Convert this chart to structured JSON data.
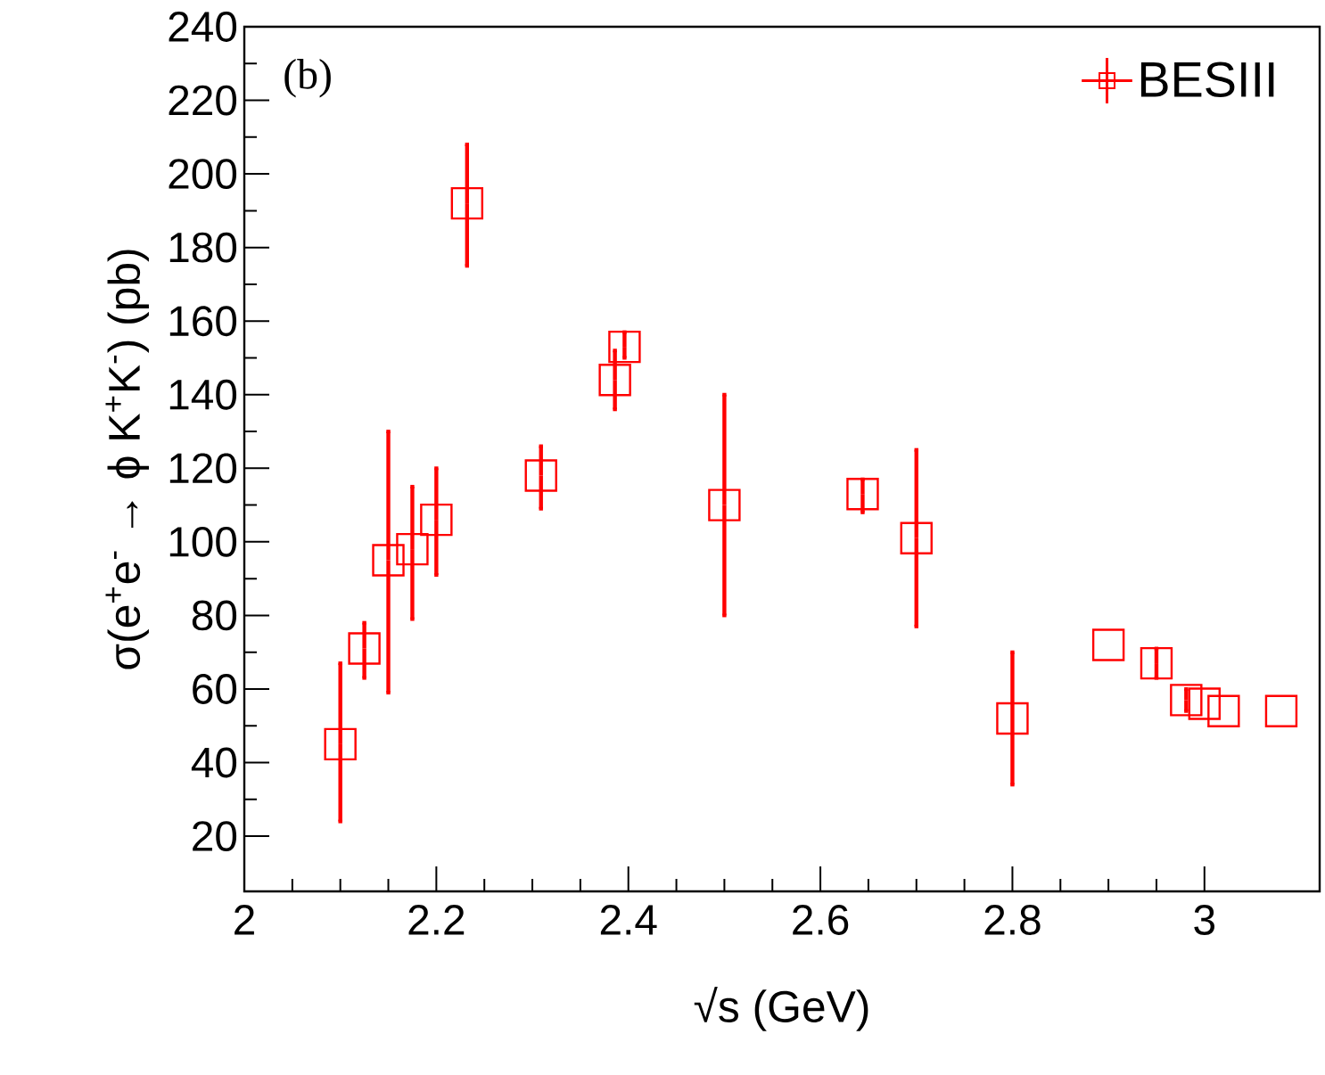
{
  "chart_data": {
    "type": "scatter",
    "xlabel": "√s (GeV)",
    "ylabel": "σ(e$^{+}$e$^{-}$ → ϕ K$^{+}$K$^{-}$) (pb)",
    "annotations": [
      "(b)"
    ],
    "series": [
      {
        "name": "BESIII",
        "color": "#ff0000",
        "x": [
          2.1,
          2.125,
          2.15,
          2.175,
          2.2,
          2.232,
          2.309,
          2.386,
          2.396,
          2.5,
          2.644,
          2.7,
          2.8,
          2.9,
          2.95,
          2.981,
          3.0,
          3.02,
          3.08
        ],
        "values": [
          45,
          71,
          95,
          98,
          106,
          192,
          118,
          144,
          153,
          110,
          113,
          101,
          52,
          72,
          67,
          57,
          56,
          54,
          54
        ],
        "errors": [
          [
            24,
            67
          ],
          [
            63,
            78
          ],
          [
            59,
            130
          ],
          [
            79,
            115
          ],
          [
            91,
            120
          ],
          [
            175,
            208
          ],
          [
            109,
            126
          ],
          [
            136,
            152
          ],
          [
            150,
            157
          ],
          [
            80,
            140
          ],
          [
            108,
            117
          ],
          [
            77,
            125
          ],
          [
            34,
            70
          ],
          null,
          [
            63,
            71
          ],
          [
            54,
            60
          ],
          null,
          null,
          null
        ]
      }
    ],
    "marker": "square",
    "legend": "top right",
    "grid": false,
    "xlim": [
      2,
      3.12
    ],
    "xticks": [
      2,
      2.2,
      2.4,
      2.6,
      2.8,
      3
    ],
    "ylim": [
      5,
      240
    ],
    "yticks": [
      20,
      40,
      60,
      80,
      100,
      120,
      140,
      160,
      180,
      200,
      220,
      240
    ]
  }
}
